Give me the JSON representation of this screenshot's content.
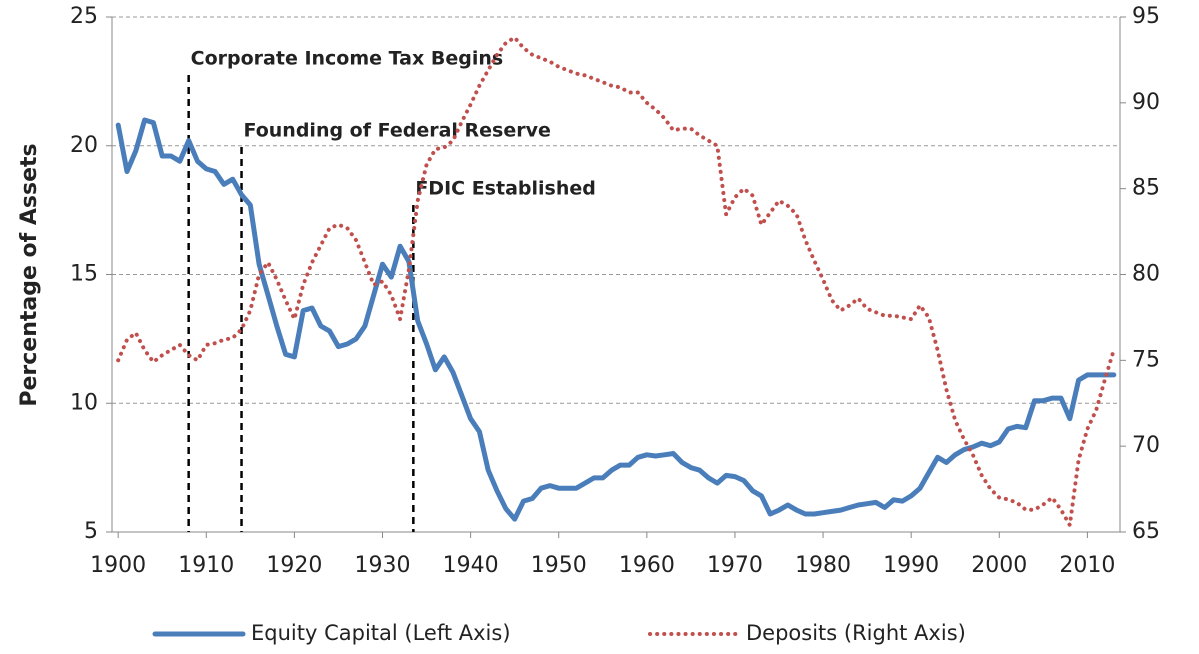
{
  "chart_data": {
    "type": "line",
    "y_label": "Percentage of Assets",
    "x": [
      1900,
      1901,
      1902,
      1903,
      1904,
      1905,
      1906,
      1907,
      1908,
      1909,
      1910,
      1911,
      1912,
      1913,
      1914,
      1915,
      1916,
      1917,
      1918,
      1919,
      1920,
      1921,
      1922,
      1923,
      1924,
      1925,
      1926,
      1927,
      1928,
      1929,
      1930,
      1931,
      1932,
      1933,
      1934,
      1935,
      1936,
      1937,
      1938,
      1939,
      1940,
      1941,
      1942,
      1943,
      1944,
      1945,
      1946,
      1947,
      1948,
      1949,
      1950,
      1951,
      1952,
      1953,
      1954,
      1955,
      1956,
      1957,
      1958,
      1959,
      1960,
      1961,
      1962,
      1963,
      1964,
      1965,
      1966,
      1967,
      1968,
      1969,
      1970,
      1971,
      1972,
      1973,
      1974,
      1975,
      1976,
      1977,
      1978,
      1979,
      1980,
      1981,
      1982,
      1983,
      1984,
      1985,
      1986,
      1987,
      1988,
      1989,
      1990,
      1991,
      1992,
      1993,
      1994,
      1995,
      1996,
      1997,
      1998,
      1999,
      2000,
      2001,
      2002,
      2003,
      2004,
      2005,
      2006,
      2007,
      2008,
      2009,
      2010,
      2011,
      2012,
      2013
    ],
    "series": [
      {
        "name": "Equity Capital (Left Axis)",
        "color": "#4a7ebb",
        "style": "solid",
        "values": [
          20.8,
          19.0,
          19.8,
          21.0,
          20.9,
          19.6,
          19.6,
          19.4,
          20.2,
          19.4,
          19.1,
          19.0,
          18.5,
          18.7,
          18.1,
          17.7,
          15.4,
          14.2,
          13.0,
          11.9,
          11.8,
          13.6,
          13.7,
          13.0,
          12.8,
          12.2,
          12.3,
          12.5,
          13.0,
          14.2,
          15.4,
          14.9,
          16.1,
          15.5,
          13.2,
          12.3,
          11.3,
          11.8,
          11.2,
          10.3,
          9.4,
          8.9,
          7.4,
          6.6,
          5.9,
          5.5,
          6.2,
          6.3,
          6.7,
          6.8,
          6.7,
          6.7,
          6.7,
          6.9,
          7.1,
          7.1,
          7.4,
          7.6,
          7.6,
          7.9,
          8.0,
          7.95,
          8.0,
          8.05,
          7.7,
          7.5,
          7.4,
          7.1,
          6.9,
          7.2,
          7.15,
          7.0,
          6.6,
          6.4,
          5.7,
          5.85,
          6.05,
          5.85,
          5.7,
          5.7,
          5.75,
          5.8,
          5.85,
          5.95,
          6.05,
          6.1,
          6.15,
          5.95,
          6.25,
          6.2,
          6.4,
          6.7,
          7.3,
          7.9,
          7.7,
          8.0,
          8.2,
          8.3,
          8.45,
          8.35,
          8.5,
          9.0,
          9.1,
          9.05,
          10.1,
          10.1,
          10.2,
          10.2,
          9.4,
          10.9,
          11.1,
          11.1,
          11.1,
          11.1
        ]
      },
      {
        "name": "Deposits (Right Axis)",
        "color": "#c0504d",
        "style": "dotted",
        "axis": "y2",
        "values": [
          75.0,
          76.2,
          76.6,
          75.6,
          74.9,
          75.3,
          75.6,
          75.9,
          75.3,
          75.0,
          75.9,
          76.0,
          76.2,
          76.3,
          76.8,
          77.9,
          80.0,
          80.7,
          79.7,
          78.5,
          77.4,
          79.4,
          80.7,
          81.7,
          82.7,
          82.9,
          82.7,
          82.0,
          80.7,
          79.4,
          79.6,
          78.8,
          77.4,
          80.3,
          84.3,
          86.4,
          87.3,
          87.4,
          87.8,
          88.9,
          89.9,
          91.0,
          91.9,
          92.8,
          93.5,
          93.8,
          93.2,
          92.8,
          92.6,
          92.4,
          92.1,
          91.9,
          91.7,
          91.6,
          91.4,
          91.2,
          91.0,
          90.9,
          90.6,
          90.6,
          90.0,
          89.6,
          89.1,
          88.4,
          88.5,
          88.5,
          88.1,
          87.8,
          87.5,
          83.5,
          84.5,
          85.0,
          84.6,
          82.9,
          83.6,
          84.3,
          84.0,
          83.5,
          82.0,
          80.8,
          79.7,
          78.5,
          77.9,
          78.2,
          78.6,
          78.0,
          77.8,
          77.6,
          77.6,
          77.5,
          77.4,
          78.2,
          77.5,
          75.6,
          73.3,
          71.5,
          70.4,
          69.5,
          68.3,
          67.5,
          67.0,
          66.9,
          66.7,
          66.3,
          66.3,
          66.6,
          67.0,
          66.3,
          65.4,
          69.2,
          71.0,
          72.1,
          73.9,
          75.6
        ]
      }
    ],
    "annotations": [
      {
        "label": "Corporate Income Tax Begins",
        "x": 1908
      },
      {
        "label": "Founding of Federal Reserve",
        "x": 1914
      },
      {
        "label": "FDIC Established",
        "x": 1933.5
      }
    ],
    "xlim": [
      1899.3,
      2013.7
    ],
    "xticks": [
      1900,
      1910,
      1920,
      1930,
      1940,
      1950,
      1960,
      1970,
      1980,
      1990,
      2000,
      2010
    ],
    "ylim": [
      5,
      25
    ],
    "yticks": [
      5,
      10,
      15,
      20,
      25
    ],
    "y2lim": [
      65,
      95
    ],
    "y2ticks": [
      65,
      70,
      75,
      80,
      85,
      90,
      95
    ],
    "grid": true
  }
}
